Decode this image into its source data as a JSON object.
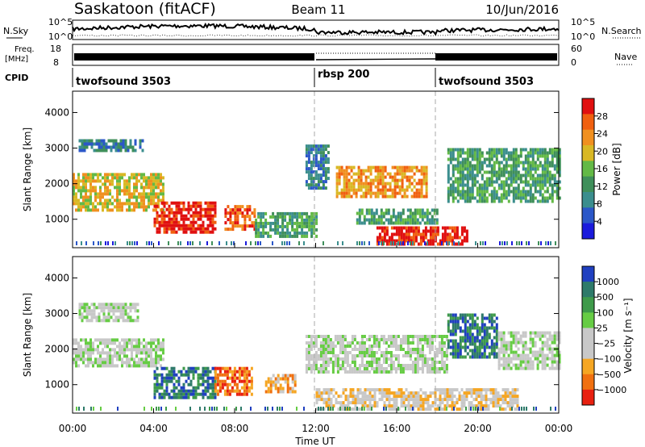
{
  "header": {
    "station": "Saskatoon (fitACF)",
    "beam": "Beam 11",
    "date": "10/Jun/2016"
  },
  "noise_panel": {
    "left_label": "N.Sky",
    "right_label": "N.Search",
    "y_ticks": [
      "10^5",
      "10^0"
    ]
  },
  "freq_panel": {
    "left_label_1": "Freq.",
    "left_label_2": "[MHz]",
    "left_ticks": [
      "18",
      "8"
    ],
    "right_ticks": [
      "60",
      "0"
    ],
    "right_label": "Nave"
  },
  "cpid_panel": {
    "label": "CPID",
    "segments": [
      {
        "name": "twofsound 3503",
        "start_hour": 0
      },
      {
        "name": "rbsp 200",
        "start_hour": 12
      },
      {
        "name": "twofsound 3503",
        "start_hour": 18
      }
    ]
  },
  "colors": {
    "power_scale": [
      "#1a1adc",
      "#2b57c8",
      "#3b8e8e",
      "#3f8f5a",
      "#63b946",
      "#d9b825",
      "#f09020",
      "#f06010",
      "#e01010"
    ],
    "velocity_scale": [
      "#2040c0",
      "#2e7a6a",
      "#3e9a4a",
      "#66cc44",
      "#c8c8c8",
      "#c8c8c8",
      "#f5a623",
      "#f07010",
      "#e82010"
    ],
    "beam_range_color": "#0000ff"
  },
  "chart_data": [
    {
      "type": "heatmap",
      "name": "power",
      "ylabel": "Slant Range [km]",
      "y_ticks": [
        "4000",
        "3000",
        "2000",
        "1000"
      ],
      "ylim": [
        200,
        4600
      ],
      "xlim": [
        0,
        24
      ],
      "colorbar": {
        "label": "Power [dB]",
        "ticks": [
          "28",
          "24",
          "20",
          "16",
          "12",
          "8",
          "4"
        ]
      },
      "regions": [
        {
          "t0": 0.0,
          "t1": 4.5,
          "r0": 1300,
          "r1": 2300,
          "level": 5
        },
        {
          "t0": 0.3,
          "t1": 3.5,
          "r0": 2900,
          "r1": 3250,
          "level": 2
        },
        {
          "t0": 4.0,
          "t1": 7.0,
          "r0": 600,
          "r1": 1500,
          "level": 8
        },
        {
          "t0": 7.5,
          "t1": 9.0,
          "r0": 700,
          "r1": 1400,
          "level": 7
        },
        {
          "t0": 9.0,
          "t1": 12.0,
          "r0": 500,
          "r1": 1200,
          "level": 3
        },
        {
          "t0": 11.5,
          "t1": 12.6,
          "r0": 1900,
          "r1": 3100,
          "level": 2
        },
        {
          "t0": 13.0,
          "t1": 17.5,
          "r0": 1600,
          "r1": 2500,
          "level": 6
        },
        {
          "t0": 15.0,
          "t1": 19.5,
          "r0": 300,
          "r1": 800,
          "level": 8
        },
        {
          "t0": 14.0,
          "t1": 18.0,
          "r0": 900,
          "r1": 1300,
          "level": 3
        },
        {
          "t0": 18.5,
          "t1": 24.0,
          "r0": 1500,
          "r1": 3000,
          "level": 3
        }
      ]
    },
    {
      "type": "heatmap",
      "name": "velocity",
      "ylabel": "Slant Range [km]",
      "y_ticks": [
        "4000",
        "3000",
        "2000",
        "1000"
      ],
      "ylim": [
        200,
        4600
      ],
      "xlim": [
        0,
        24
      ],
      "x_ticks": [
        "00:00",
        "04:00",
        "08:00",
        "12:00",
        "16:00",
        "20:00",
        "00:00"
      ],
      "xlabel": "Time UT",
      "colorbar": {
        "label": "Velocity [m s⁻¹]",
        "ticks": [
          "1000",
          "500",
          "100",
          "25",
          "−25",
          "−100",
          "−500",
          "−1000"
        ]
      },
      "regions": [
        {
          "t0": 0.0,
          "t1": 4.5,
          "r0": 1500,
          "r1": 2300,
          "level": 4
        },
        {
          "t0": 0.3,
          "t1": 3.2,
          "r0": 2800,
          "r1": 3300,
          "level": 4
        },
        {
          "t0": 4.0,
          "t1": 7.0,
          "r0": 600,
          "r1": 1500,
          "level": 1
        },
        {
          "t0": 7.0,
          "t1": 8.8,
          "r0": 700,
          "r1": 1500,
          "level": 7
        },
        {
          "t0": 9.5,
          "t1": 11.0,
          "r0": 800,
          "r1": 1300,
          "level": 6
        },
        {
          "t0": 11.5,
          "t1": 18.5,
          "r0": 1400,
          "r1": 2400,
          "level": 4
        },
        {
          "t0": 12.0,
          "t1": 22.0,
          "r0": 300,
          "r1": 900,
          "level": 5
        },
        {
          "t0": 18.5,
          "t1": 21.0,
          "r0": 1800,
          "r1": 3000,
          "level": 1
        },
        {
          "t0": 21.0,
          "t1": 24.0,
          "r0": 1500,
          "r1": 2500,
          "level": 4
        }
      ]
    }
  ]
}
